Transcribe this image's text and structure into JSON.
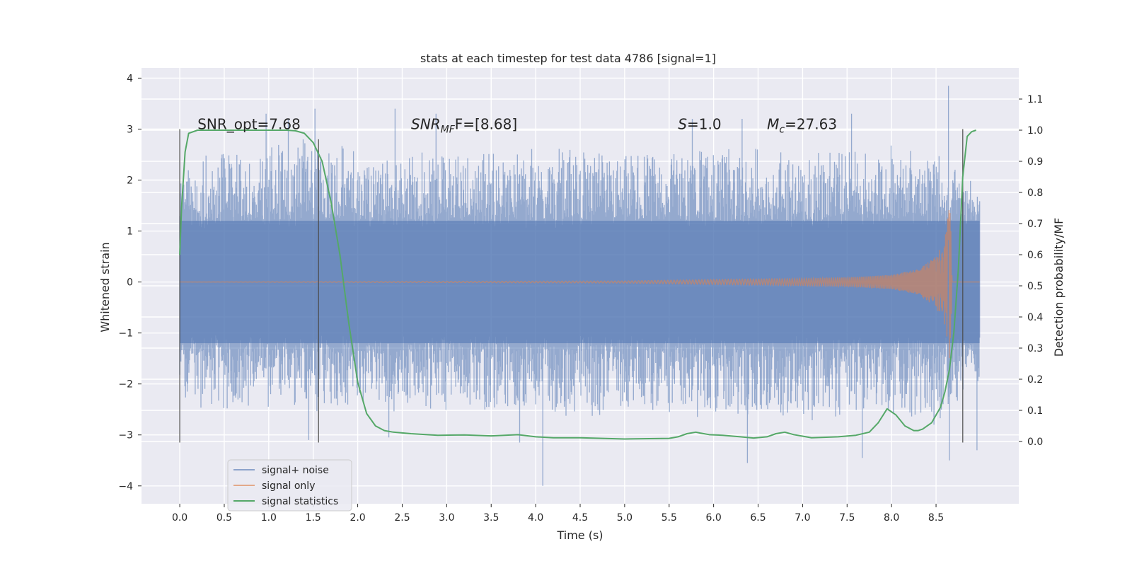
{
  "chart_data": {
    "type": "line",
    "title": "stats at each timestep for test data 4786 [signal=1]",
    "xlabel": "Time (s)",
    "ylabel_left": "Whitened strain",
    "ylabel_right": "Detection probability/MF",
    "xlim": [
      -0.43,
      9.43
    ],
    "ylim_left": [
      -4.35,
      4.2
    ],
    "ylim_right": [
      -0.2,
      1.2
    ],
    "x_ticks": [
      "0.0",
      "0.5",
      "1.0",
      "1.5",
      "2.0",
      "2.5",
      "3.0",
      "3.5",
      "4.0",
      "4.5",
      "5.0",
      "5.5",
      "6.0",
      "6.5",
      "7.0",
      "7.5",
      "8.0",
      "8.5"
    ],
    "y_left_ticks": [
      "4",
      "3",
      "2",
      "1",
      "0",
      "−1",
      "−2",
      "−3",
      "−4"
    ],
    "y_right_ticks": [
      "1.1",
      "1.0",
      "0.9",
      "0.8",
      "0.7",
      "0.6",
      "0.5",
      "0.4",
      "0.3",
      "0.2",
      "0.1",
      "0.0"
    ],
    "grid": true,
    "legend_position": "lower-left",
    "annotations": [
      {
        "text": "SNR_opt=7.68",
        "x": 0.2,
        "y": 3.0
      },
      {
        "text": "F=[8.68]",
        "prefix": "SNR",
        "sub": "MF",
        "x": 2.6,
        "y": 3.0
      },
      {
        "text": "=1.0",
        "prefix": "S",
        "x": 5.6,
        "y": 3.0
      },
      {
        "text": "=27.63",
        "prefix": "M",
        "sub": "c",
        "x": 6.6,
        "y": 3.0
      }
    ],
    "vertical_markers": [
      {
        "x": 0.0,
        "ymin": -3.15,
        "ymax": 3.0
      },
      {
        "x": 1.56,
        "ymin": -3.15,
        "ymax": 2.8
      },
      {
        "x": 8.8,
        "ymin": -3.15,
        "ymax": 3.0
      }
    ],
    "series": [
      {
        "name": "signal+ noise",
        "color": "#4c72b0",
        "axis": "left",
        "x_range": [
          0.0,
          8.99
        ],
        "core_amplitude": 1.2,
        "envelope_upper": [
          [
            0,
            2.2
          ],
          [
            0.5,
            2.5
          ],
          [
            1.0,
            2.6
          ],
          [
            1.5,
            2.7
          ],
          [
            2.0,
            2.5
          ],
          [
            2.5,
            2.4
          ],
          [
            3.0,
            2.6
          ],
          [
            3.5,
            2.5
          ],
          [
            4.0,
            2.5
          ],
          [
            4.5,
            2.6
          ],
          [
            5.0,
            2.5
          ],
          [
            5.5,
            2.5
          ],
          [
            6.0,
            2.6
          ],
          [
            6.5,
            2.5
          ],
          [
            7.0,
            2.5
          ],
          [
            7.5,
            2.6
          ],
          [
            8.0,
            2.6
          ],
          [
            8.5,
            2.5
          ],
          [
            8.99,
            1.8
          ]
        ],
        "envelope_lower": [
          [
            0,
            -2.2
          ],
          [
            0.5,
            -2.5
          ],
          [
            1.0,
            -2.4
          ],
          [
            1.5,
            -2.5
          ],
          [
            2.0,
            -2.5
          ],
          [
            2.5,
            -2.5
          ],
          [
            3.0,
            -2.5
          ],
          [
            3.5,
            -2.5
          ],
          [
            4.0,
            -2.6
          ],
          [
            4.5,
            -2.5
          ],
          [
            5.0,
            -2.5
          ],
          [
            5.5,
            -2.5
          ],
          [
            6.0,
            -2.6
          ],
          [
            6.5,
            -2.6
          ],
          [
            7.0,
            -2.6
          ],
          [
            7.5,
            -2.6
          ],
          [
            8.0,
            -2.6
          ],
          [
            8.5,
            -2.7
          ],
          [
            8.99,
            -1.8
          ]
        ],
        "spikes": [
          [
            0.97,
            3.3
          ],
          [
            1.22,
            3.2
          ],
          [
            1.52,
            3.4
          ],
          [
            2.42,
            3.4
          ],
          [
            2.88,
            3.3
          ],
          [
            5.76,
            3.2
          ],
          [
            6.32,
            3.2
          ],
          [
            7.55,
            3.3
          ],
          [
            8.64,
            3.85
          ],
          [
            4.08,
            -4.0
          ],
          [
            3.82,
            -3.15
          ],
          [
            6.38,
            -3.55
          ],
          [
            7.67,
            -3.45
          ],
          [
            8.65,
            -3.5
          ],
          [
            8.96,
            -3.3
          ],
          [
            2.35,
            -3.05
          ],
          [
            1.45,
            -3.1
          ]
        ]
      },
      {
        "name": "signal only",
        "color": "#dd8452",
        "axis": "left",
        "amplitude_envelope": [
          [
            0,
            0.0
          ],
          [
            5.0,
            0.02
          ],
          [
            6.0,
            0.05
          ],
          [
            7.0,
            0.07
          ],
          [
            7.5,
            0.09
          ],
          [
            8.0,
            0.14
          ],
          [
            8.3,
            0.25
          ],
          [
            8.5,
            0.5
          ],
          [
            8.6,
            0.85
          ],
          [
            8.66,
            1.65
          ],
          [
            8.68,
            0.0
          ],
          [
            8.99,
            0.0
          ]
        ]
      },
      {
        "name": "signal statistics",
        "color": "#55a868",
        "axis": "right",
        "x": [
          0.0,
          0.02,
          0.06,
          0.1,
          0.2,
          0.35,
          0.6,
          0.9,
          1.2,
          1.3,
          1.4,
          1.5,
          1.6,
          1.7,
          1.8,
          1.9,
          2.0,
          2.1,
          2.2,
          2.3,
          2.4,
          2.6,
          2.9,
          3.2,
          3.5,
          3.8,
          4.0,
          4.2,
          4.5,
          5.0,
          5.5,
          5.6,
          5.7,
          5.8,
          5.85,
          5.95,
          6.1,
          6.3,
          6.45,
          6.6,
          6.7,
          6.8,
          6.9,
          7.1,
          7.4,
          7.6,
          7.75,
          7.85,
          7.95,
          8.05,
          8.15,
          8.25,
          8.3,
          8.35,
          8.45,
          8.55,
          8.6,
          8.65,
          8.7,
          8.75,
          8.8,
          8.85,
          8.9,
          8.95
        ],
        "values": [
          0.6,
          0.75,
          0.93,
          0.99,
          1.0,
          1.0,
          1.0,
          1.0,
          1.0,
          0.998,
          0.99,
          0.96,
          0.9,
          0.77,
          0.6,
          0.38,
          0.19,
          0.09,
          0.05,
          0.035,
          0.03,
          0.025,
          0.02,
          0.021,
          0.018,
          0.022,
          0.015,
          0.012,
          0.012,
          0.008,
          0.01,
          0.015,
          0.025,
          0.03,
          0.027,
          0.022,
          0.02,
          0.015,
          0.011,
          0.015,
          0.025,
          0.03,
          0.022,
          0.012,
          0.015,
          0.02,
          0.03,
          0.06,
          0.105,
          0.085,
          0.05,
          0.035,
          0.035,
          0.04,
          0.06,
          0.11,
          0.16,
          0.23,
          0.35,
          0.55,
          0.85,
          0.98,
          0.995,
          1.0
        ]
      }
    ]
  }
}
